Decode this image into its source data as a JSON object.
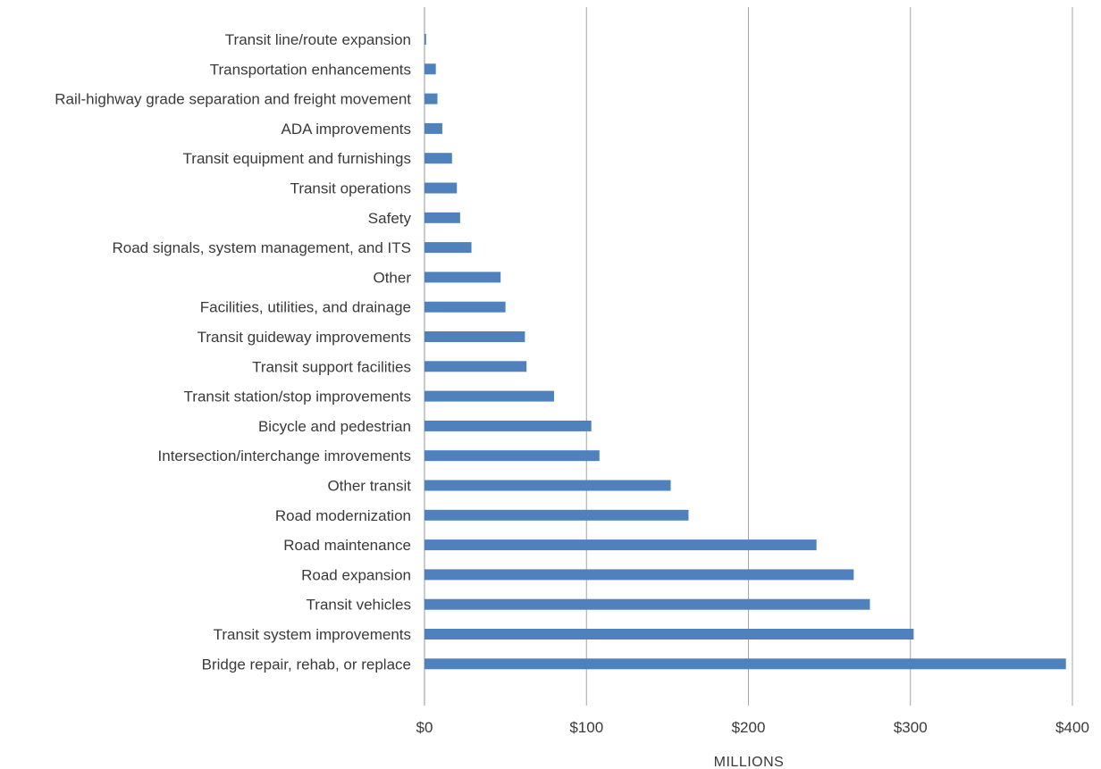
{
  "chart_data": {
    "type": "bar",
    "orientation": "horizontal",
    "categories": [
      "Transit line/route expansion",
      "Transportation enhancements",
      "Rail-highway grade separation and freight movement",
      "ADA improvements",
      "Transit equipment and furnishings",
      "Transit operations",
      "Safety",
      "Road signals, system management, and ITS",
      "Other",
      "Facilities, utilities, and drainage",
      "Transit guideway improvements",
      "Transit support facilities",
      "Transit station/stop improvements",
      "Bicycle and pedestrian",
      "Intersection/interchange imrovements",
      "Other transit",
      "Road modernization",
      "Road maintenance",
      "Road expansion",
      "Transit vehicles",
      "Transit system improvements",
      "Bridge repair, rehab, or replace"
    ],
    "values": [
      1,
      7,
      8,
      11,
      17,
      20,
      22,
      29,
      47,
      50,
      62,
      63,
      80,
      103,
      108,
      152,
      163,
      242,
      265,
      275,
      302,
      396
    ],
    "title": "",
    "xlabel": "MILLIONS",
    "ylabel": "",
    "xlim": [
      0,
      400
    ],
    "x_ticks": [
      0,
      100,
      200,
      300,
      400
    ],
    "x_tick_labels": [
      "$0",
      "$100",
      "$200",
      "$300",
      "$400"
    ],
    "grid": "vertical",
    "bar_color": "#4f81bd",
    "grid_color": "#a6a6a6",
    "text_color": "#3a3a3a"
  }
}
